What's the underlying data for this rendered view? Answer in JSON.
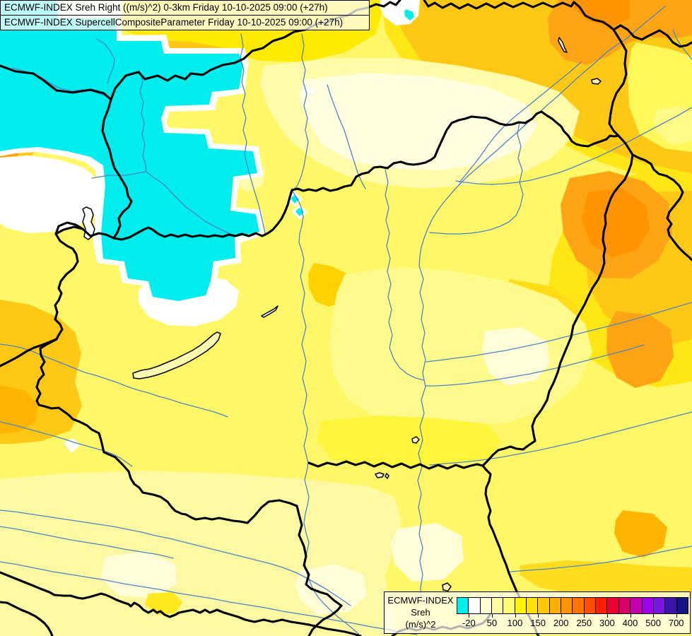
{
  "title": {
    "line1": "ECMWF-INDEX Sreh Right ((m/s)^2) 0-3km Friday 10-10-2025 09:00 (+27h)",
    "line2": "ECMWF-INDEX SupercellCompositeParameter Friday 10-10-2025 09:00 (+27h)"
  },
  "legend": {
    "heading": "ECMWF-INDEX",
    "param": "Sreh",
    "units": "(m/s)^2",
    "colors": [
      "#00EDED",
      "#FFFFFF",
      "#FFFFD2",
      "#FFFDA4",
      "#FFFB70",
      "#FFF500",
      "#FFE100",
      "#FFC800",
      "#FFAF00",
      "#FF9400",
      "#FF7300",
      "#FF4D00",
      "#FF1E00",
      "#EF0032",
      "#D9006B",
      "#C100AC",
      "#9E00E8",
      "#7716DF",
      "#3D13AE",
      "#151283"
    ],
    "ticks": [
      {
        "label": "-20",
        "pos": 1
      },
      {
        "label": "50",
        "pos": 3
      },
      {
        "label": "100",
        "pos": 5
      },
      {
        "label": "150",
        "pos": 7
      },
      {
        "label": "200",
        "pos": 9
      },
      {
        "label": "250",
        "pos": 11
      },
      {
        "label": "300",
        "pos": 13
      },
      {
        "label": "400",
        "pos": 15
      },
      {
        "label": "500",
        "pos": 17
      },
      {
        "label": "700",
        "pos": 19
      }
    ]
  },
  "palette": {
    "base": "#FFF768",
    "cyan": "#00EDED",
    "white": "#FFFFFF",
    "cream": "#FFFEDE",
    "creamSpot": "#FFFDD6",
    "pale": "#FFFBA8",
    "pale2": "#FFFA8C",
    "paleBottom": "#FDF9A2",
    "paleEdge": "#FFFB86",
    "brightYellow": "#FFEB00",
    "brightSouth": "#FFF63C",
    "lightNE": "#FFF85A",
    "midYellow": "#FFE614",
    "goldSoft": "#FFDC14",
    "gold": "#FFC814",
    "gold2": "#FFD200",
    "goldBtm": "#FFE81E",
    "swGold": "#FFE428",
    "brGold": "#FFDC1E",
    "orange": "#FFA414",
    "orangeMid": "#FFB400",
    "orangeDeep": "#FF9400",
    "border": "#000000",
    "river": "#4C86C2",
    "lakeFill": "#FCF9B0"
  }
}
